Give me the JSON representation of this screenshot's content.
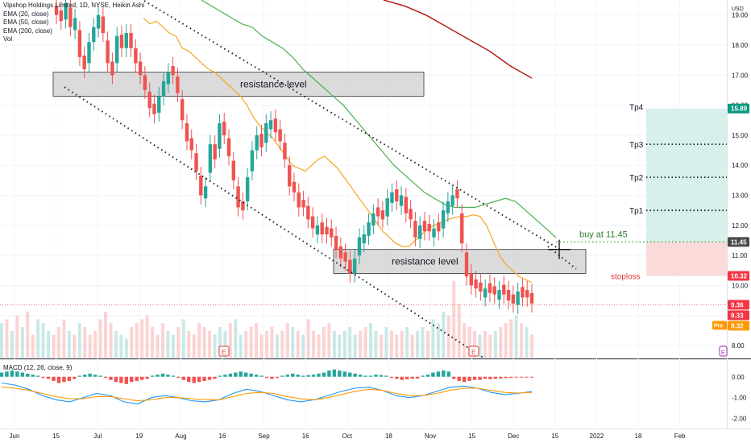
{
  "header": {
    "symbol_line": "Vipshop Holdings Limited, 1D, NYSE, Heikin Ashi",
    "indicators": [
      "EMA (20, close)",
      "EMA (50, close)",
      "EMA (200, close)",
      "Vol"
    ],
    "macd_label": "MACD (12, 26, close, 9)",
    "currency": "USD"
  },
  "colors": {
    "up": "#26a69a",
    "down": "#ef5350",
    "ema20": "#f5a623",
    "ema50": "#4caf50",
    "ema200": "#b71c1c",
    "macd_line": "#2196f3",
    "signal_line": "#ff9800",
    "target_zone": "#d8f0ec",
    "stop_zone": "#fbdada",
    "tp_label_bg": "#089981",
    "buy_label_bg": "#4a4a4a",
    "stop_label_bg": "#f23645",
    "pre_label_bg": "#ff9800"
  },
  "annotations": {
    "resistance_upper": "resistance level",
    "resistance_lower": "resistance level",
    "buy_at": "buy at  11.45",
    "tp1": "Tp1",
    "tp2": "Tp2",
    "tp3": "Tp3",
    "tp4": "Tp4",
    "stoploss": "stoploss",
    "earnings_marker": "E"
  },
  "price_labels": {
    "tp4": "15.89",
    "buy": "11.45",
    "stop": "10.32",
    "last1": "9.36",
    "last2": "9.33",
    "pre_tag": "Pre",
    "pre_value": "9.32"
  },
  "chart_data": {
    "type": "candlestick",
    "price_axis": {
      "ticks": [
        "19.00",
        "18.00",
        "17.00",
        "16.00",
        "15.00",
        "14.00",
        "13.00",
        "12.00",
        "11.00",
        "10.00",
        "9.00",
        "8.00"
      ],
      "range": [
        7.6,
        19.5
      ]
    },
    "macd_axis": {
      "ticks": [
        "0.00",
        "-1.00",
        "-2.00"
      ],
      "range": [
        -2.4,
        0.8
      ]
    },
    "x_ticks": [
      "Jun",
      "15",
      "Jul",
      "19",
      "Aug",
      "16",
      "Sep",
      "16",
      "Oct",
      "18",
      "Nov",
      "15",
      "Dec",
      "15",
      "2022",
      "18",
      "Feb"
    ],
    "levels": {
      "upper_resistance_zone": [
        16.3,
        17.1
      ],
      "lower_resistance_zone": [
        10.4,
        11.2
      ],
      "buy": 11.45,
      "stoploss": 10.32,
      "tp1": 12.5,
      "tp2": 13.6,
      "tp3": 14.7,
      "tp4": 15.89
    },
    "closes": [
      19.0,
      18.8,
      19.4,
      18.6,
      18.9,
      17.6,
      17.2,
      18.1,
      18.6,
      19.0,
      18.4,
      17.4,
      17.0,
      18.3,
      17.9,
      18.4,
      17.9,
      17.4,
      17.0,
      16.5,
      15.9,
      15.7,
      16.3,
      16.8,
      17.1,
      17.0,
      16.4,
      15.5,
      14.8,
      14.5,
      13.8,
      13.0,
      13.3,
      14.7,
      14.2,
      15.4,
      15.0,
      14.3,
      13.5,
      12.6,
      12.5,
      13.6,
      14.5,
      15.0,
      14.6,
      15.4,
      15.5,
      15.1,
      14.8,
      14.2,
      13.3,
      13.1,
      12.6,
      12.6,
      12.2,
      11.9,
      12.0,
      11.7,
      11.7,
      11.6,
      11.2,
      10.9,
      10.8,
      10.4,
      10.9,
      11.6,
      11.7,
      12.1,
      12.4,
      12.3,
      12.2,
      12.9,
      13.1,
      12.8,
      13.0,
      12.4,
      12.2,
      11.6,
      12.0,
      11.8,
      11.8,
      11.9,
      11.8,
      12.5,
      12.8,
      13.0,
      12.9,
      11.4,
      10.3,
      10.0,
      9.9,
      9.8,
      9.9,
      9.75,
      9.7,
      9.85,
      9.7,
      9.5,
      9.4,
      9.8,
      9.6,
      9.6,
      9.4
    ],
    "ema20": [
      18.9,
      18.7,
      18.8,
      18.6,
      18.4,
      18.3,
      17.9,
      17.8,
      17.6,
      17.4,
      17.2,
      17.1,
      16.9,
      16.7,
      16.5,
      16.3,
      16.0,
      15.6,
      15.3,
      15.1,
      14.9,
      14.6,
      14.3,
      14.0,
      13.9,
      13.8,
      14.0,
      14.2,
      14.3,
      14.1,
      13.9,
      13.6,
      13.3,
      13.0,
      12.7,
      12.4,
      12.1,
      11.8,
      11.6,
      11.4,
      11.3,
      11.3,
      11.5,
      11.7,
      11.9,
      12.0,
      12.1,
      12.2,
      12.25,
      12.3,
      12.3,
      12.35,
      12.3,
      12.0,
      11.5,
      11.0,
      10.7,
      10.5,
      10.3,
      10.2,
      10.1
    ],
    "ema50": [
      19.5,
      19.3,
      19.1,
      18.9,
      18.7,
      18.6,
      18.3,
      18.1,
      17.9,
      17.6,
      17.2,
      16.9,
      16.6,
      16.3,
      16.0,
      15.6,
      15.2,
      14.8,
      14.4,
      14.0,
      13.7,
      13.4,
      13.1,
      12.9,
      12.7,
      12.6,
      12.6,
      12.6,
      12.7,
      12.8,
      12.9,
      12.8,
      12.5,
      12.2,
      11.9,
      11.6
    ],
    "ema200": [
      19.5,
      19.3,
      19.0,
      18.6,
      18.2,
      17.8,
      17.3,
      16.9
    ],
    "volume": [
      0.45,
      0.5,
      0.35,
      0.55,
      0.4,
      0.6,
      0.3,
      0.5,
      0.45,
      0.35,
      0.3,
      0.4,
      0.5,
      0.35,
      0.3,
      0.45,
      0.4,
      0.3,
      0.35,
      0.5,
      0.6,
      0.45,
      0.35,
      0.3,
      0.25,
      0.4,
      0.45,
      0.5,
      0.55,
      0.4,
      0.3,
      0.45,
      0.35,
      0.3,
      0.4,
      0.5,
      0.35,
      0.3,
      0.45,
      0.4,
      0.35,
      0.3,
      0.4,
      0.35,
      0.45,
      0.5,
      0.3,
      0.35,
      0.4,
      0.45,
      0.3,
      0.35,
      0.4,
      0.3,
      0.35,
      0.45,
      0.4,
      0.35,
      0.3,
      0.5,
      0.35,
      0.3,
      0.4,
      0.45,
      0.35,
      0.3,
      0.35,
      0.4,
      0.3,
      0.35,
      0.4,
      0.45,
      0.35,
      0.3,
      0.4,
      0.35,
      0.3,
      0.35,
      0.4,
      0.3,
      0.35,
      0.4,
      0.35,
      0.5,
      0.45,
      0.6,
      0.55,
      1.0,
      0.7,
      0.45,
      0.4,
      0.35,
      0.3,
      0.35,
      0.3,
      0.35,
      0.4,
      0.45,
      0.5,
      0.55,
      0.45,
      0.4,
      0.3
    ],
    "macd_hist": [
      0.2,
      0.25,
      0.3,
      0.25,
      0.2,
      0.15,
      0.1,
      0.05,
      -0.05,
      -0.1,
      -0.2,
      -0.3,
      -0.25,
      -0.2,
      -0.1,
      0.05,
      0.1,
      0.15,
      0.1,
      0.05,
      -0.05,
      -0.15,
      -0.25,
      -0.3,
      -0.35,
      -0.25,
      -0.2,
      -0.15,
      -0.1,
      0.05,
      0.1,
      0.15,
      0.1,
      0.05,
      -0.05,
      -0.15,
      -0.25,
      -0.3,
      -0.25,
      -0.2,
      -0.15,
      -0.1,
      0.05,
      0.1,
      0.15,
      0.2,
      0.25,
      0.2,
      0.15,
      0.1,
      0.05,
      -0.05,
      -0.1,
      -0.05,
      0.05,
      0.1,
      0.15,
      0.1,
      0.05,
      0.08,
      0.1,
      0.15,
      0.2,
      0.3,
      0.35,
      0.3,
      0.25,
      0.2,
      0.15,
      0.1,
      0.05,
      0.05,
      0.1,
      0.08,
      0.05,
      -0.05,
      -0.1,
      -0.15,
      -0.12,
      -0.1,
      -0.08,
      0.05,
      0.1,
      0.2,
      0.25,
      0.3,
      0.25,
      -0.1,
      -0.2,
      -0.25,
      -0.2,
      -0.15,
      -0.15,
      -0.1,
      -0.12,
      -0.1,
      -0.08,
      -0.06,
      -0.05,
      -0.04,
      -0.03,
      -0.02,
      -0.02
    ],
    "macd_line": [
      -0.3,
      -0.4,
      -0.6,
      -0.9,
      -1.1,
      -1.2,
      -1.0,
      -0.8,
      -0.9,
      -1.2,
      -1.3,
      -1.0,
      -0.9,
      -1.0,
      -1.15,
      -1.2,
      -1.1,
      -0.8,
      -0.6,
      -0.7,
      -0.9,
      -1.1,
      -1.2,
      -1.1,
      -0.9,
      -0.7,
      -0.55,
      -0.5,
      -0.65,
      -0.9,
      -1.0,
      -0.9,
      -0.7,
      -0.5,
      -0.45,
      -0.55,
      -0.75,
      -0.85,
      -0.8,
      -0.7
    ],
    "signal_line": [
      -0.5,
      -0.55,
      -0.65,
      -0.8,
      -0.95,
      -1.05,
      -1.05,
      -0.95,
      -0.95,
      -1.05,
      -1.15,
      -1.1,
      -1.0,
      -1.0,
      -1.05,
      -1.1,
      -1.1,
      -0.95,
      -0.8,
      -0.75,
      -0.8,
      -0.95,
      -1.05,
      -1.1,
      -1.0,
      -0.85,
      -0.7,
      -0.6,
      -0.65,
      -0.8,
      -0.9,
      -0.9,
      -0.8,
      -0.65,
      -0.55,
      -0.55,
      -0.65,
      -0.75,
      -0.78,
      -0.75
    ]
  }
}
